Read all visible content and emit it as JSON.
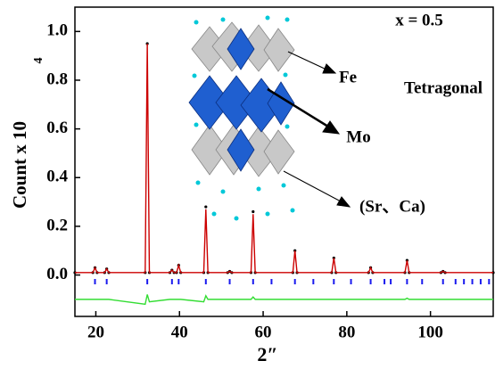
{
  "chart_data": {
    "type": "line",
    "x_label": "2″",
    "y_label": "Count x 10",
    "y_label_exponent": "4",
    "annotations": [
      "x = 0.5",
      "Tetragonal",
      "Fe",
      "Mo",
      "(Sr、Ca)"
    ],
    "x": [
      15,
      19.3,
      19.8,
      20.3,
      22.1,
      22.6,
      23.1,
      31.8,
      32.3,
      32.8,
      37.7,
      38.2,
      38.7,
      39.3,
      39.8,
      40.3,
      45.8,
      46.3,
      46.8,
      51.5,
      52,
      52.5,
      57.1,
      57.6,
      58.1,
      67.1,
      67.6,
      68.1,
      76.4,
      76.9,
      77.4,
      85.2,
      85.7,
      86.2,
      93.9,
      94.4,
      94.9,
      102.5,
      103,
      103.5,
      115
    ],
    "series": [
      {
        "color": "#000000",
        "style": "points",
        "values": [
          0.01,
          0.01,
          0.03,
          0.01,
          0.01,
          0.025,
          0.01,
          0.01,
          0.95,
          0.01,
          0.01,
          0.02,
          0.01,
          0.01,
          0.04,
          0.01,
          0.01,
          0.28,
          0.01,
          0.01,
          0.015,
          0.01,
          0.01,
          0.26,
          0.01,
          0.01,
          0.1,
          0.01,
          0.01,
          0.07,
          0.01,
          0.01,
          0.03,
          0.01,
          0.01,
          0.06,
          0.01,
          0.01,
          0.015,
          0.01,
          0.01
        ]
      },
      {
        "color": "#cc0000",
        "style": "line",
        "values": [
          0.01,
          0.01,
          0.03,
          0.01,
          0.01,
          0.025,
          0.01,
          0.01,
          0.95,
          0.01,
          0.01,
          0.02,
          0.01,
          0.01,
          0.04,
          0.01,
          0.01,
          0.27,
          0.01,
          0.01,
          0.015,
          0.01,
          0.01,
          0.25,
          0.01,
          0.01,
          0.1,
          0.01,
          0.01,
          0.07,
          0.01,
          0.01,
          0.03,
          0.01,
          0.01,
          0.06,
          0.01,
          0.01,
          0.015,
          0.01,
          0.01
        ]
      },
      {
        "color": "#33dd33",
        "style": "line",
        "values": [
          -0.1,
          -0.1,
          -0.1,
          -0.1,
          -0.1,
          -0.1,
          -0.1,
          -0.12,
          -0.08,
          -0.11,
          -0.1,
          -0.1,
          -0.1,
          -0.1,
          -0.1,
          -0.1,
          -0.11,
          -0.085,
          -0.1,
          -0.1,
          -0.1,
          -0.1,
          -0.1,
          -0.09,
          -0.1,
          -0.1,
          -0.1,
          -0.1,
          -0.1,
          -0.1,
          -0.1,
          -0.1,
          -0.1,
          -0.1,
          -0.1,
          -0.095,
          -0.1,
          -0.1,
          -0.1,
          -0.1,
          -0.1
        ]
      }
    ],
    "bragg_positions": [
      19.8,
      22.6,
      32.3,
      38.2,
      39.8,
      46.3,
      52,
      57.6,
      62,
      67.6,
      72,
      76.9,
      81,
      85.7,
      89,
      90.5,
      94.4,
      98,
      103,
      106,
      108,
      110,
      112,
      114
    ],
    "bragg_color": "#1a1aee",
    "xlim": [
      15,
      115
    ],
    "xticks": [
      20,
      40,
      60,
      80,
      100
    ],
    "ylim": [
      -0.17,
      1.1
    ],
    "yticks": [
      {
        "value": 0,
        "label": "0.0"
      },
      {
        "value": 0.2,
        "label": "0.2"
      },
      {
        "value": 0.4,
        "label": "0.4"
      },
      {
        "value": 0.6,
        "label": "0.6"
      },
      {
        "value": 0.8,
        "label": "0.8"
      },
      {
        "value": 1,
        "label": "1.0"
      }
    ]
  }
}
